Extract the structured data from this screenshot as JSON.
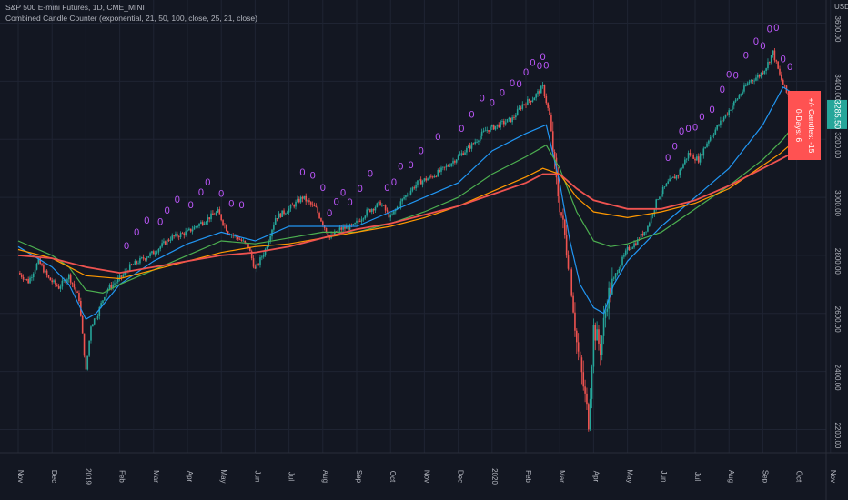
{
  "header": {
    "symbol_title": "S&P 500 E-mini Futures, 1D, CME_MINI",
    "indicator_title": "Combined Candle Counter (exponential, 21, 50, 100, close, 25, 21, close)"
  },
  "price_scale": {
    "currency": "USD"
  },
  "colors": {
    "background": "#131722",
    "grid": "#1f2433",
    "axis_text": "#b2b5be",
    "candle_up": "#26a69a",
    "candle_down": "#ef5350",
    "marker": "#c058ff",
    "ema21": "#2196f3",
    "ema50": "#4caf50",
    "ema100": "#ff9800",
    "slow_ma": "#ef5350",
    "price_label": "#26a69a",
    "info_box": "#ff5252"
  },
  "info_box": {
    "line1": "+/- Candles: -15",
    "line2": "0-Days: 6"
  },
  "price_label": "3285.50",
  "marker_symbol": "0",
  "chart_data": {
    "type": "candlestick",
    "title": "S&P 500 E-mini Futures, 1D, CME_MINI",
    "ylim": [
      2120,
      3680
    ],
    "xlim": [
      0,
      24
    ],
    "yticks": [
      2200,
      2400,
      2600,
      2800,
      3000,
      3200,
      3400,
      3600
    ],
    "ytick_labels": [
      "2200.00",
      "2400.00",
      "2600.00",
      "2800.00",
      "3000.00",
      "3200.00",
      "3400.00",
      "3600.00"
    ],
    "xtick_labels": [
      "Nov",
      "Dec",
      "2019",
      "Feb",
      "Mar",
      "Apr",
      "May",
      "Jun",
      "Jul",
      "Aug",
      "Sep",
      "Oct",
      "Nov",
      "Dec",
      "2020",
      "Feb",
      "Mar",
      "Apr",
      "May",
      "Jun",
      "Jul",
      "Aug",
      "Sep",
      "Oct",
      "Nov"
    ],
    "grid": true,
    "last_price": 3285.5,
    "close_path": [
      [
        0,
        2740
      ],
      [
        0.3,
        2710
      ],
      [
        0.6,
        2780
      ],
      [
        0.9,
        2720
      ],
      [
        1.2,
        2690
      ],
      [
        1.5,
        2730
      ],
      [
        1.8,
        2650
      ],
      [
        2.0,
        2400
      ],
      [
        2.15,
        2560
      ],
      [
        2.35,
        2600
      ],
      [
        2.6,
        2680
      ],
      [
        3.0,
        2720
      ],
      [
        3.3,
        2760
      ],
      [
        3.7,
        2790
      ],
      [
        4.0,
        2810
      ],
      [
        4.5,
        2860
      ],
      [
        5.0,
        2880
      ],
      [
        5.5,
        2920
      ],
      [
        5.9,
        2950
      ],
      [
        6.2,
        2880
      ],
      [
        6.5,
        2860
      ],
      [
        6.8,
        2830
      ],
      [
        7.0,
        2750
      ],
      [
        7.3,
        2820
      ],
      [
        7.6,
        2930
      ],
      [
        8.0,
        2960
      ],
      [
        8.4,
        3000
      ],
      [
        8.8,
        2960
      ],
      [
        9.2,
        2860
      ],
      [
        9.5,
        2890
      ],
      [
        9.9,
        2900
      ],
      [
        10.3,
        2950
      ],
      [
        10.7,
        2980
      ],
      [
        11.0,
        2930
      ],
      [
        11.4,
        3000
      ],
      [
        11.8,
        3050
      ],
      [
        12.2,
        3070
      ],
      [
        12.6,
        3100
      ],
      [
        13.0,
        3140
      ],
      [
        13.4,
        3180
      ],
      [
        13.8,
        3230
      ],
      [
        14.2,
        3250
      ],
      [
        14.6,
        3270
      ],
      [
        14.9,
        3320
      ],
      [
        15.2,
        3340
      ],
      [
        15.5,
        3380
      ],
      [
        15.7,
        3280
      ],
      [
        15.9,
        3050
      ],
      [
        16.1,
        2900
      ],
      [
        16.3,
        2750
      ],
      [
        16.5,
        2500
      ],
      [
        16.7,
        2350
      ],
      [
        16.85,
        2230
      ],
      [
        17.0,
        2550
      ],
      [
        17.2,
        2480
      ],
      [
        17.4,
        2650
      ],
      [
        17.7,
        2750
      ],
      [
        18.0,
        2820
      ],
      [
        18.3,
        2850
      ],
      [
        18.6,
        2900
      ],
      [
        18.9,
        3000
      ],
      [
        19.2,
        3050
      ],
      [
        19.5,
        3080
      ],
      [
        19.8,
        3150
      ],
      [
        20.1,
        3130
      ],
      [
        20.4,
        3200
      ],
      [
        20.7,
        3250
      ],
      [
        21.0,
        3300
      ],
      [
        21.3,
        3350
      ],
      [
        21.6,
        3400
      ],
      [
        21.9,
        3420
      ],
      [
        22.1,
        3450
      ],
      [
        22.3,
        3500
      ],
      [
        22.5,
        3420
      ],
      [
        22.7,
        3360
      ],
      [
        22.9,
        3330
      ],
      [
        23.1,
        3300
      ],
      [
        23.3,
        3260
      ]
    ],
    "series": [
      {
        "name": "21",
        "color": "#2196f3",
        "x": [
          0,
          1,
          1.5,
          2,
          2.3,
          3,
          4,
          5,
          6,
          7,
          8,
          9,
          10,
          11,
          12,
          13,
          14,
          15,
          15.6,
          16,
          16.3,
          16.6,
          17,
          17.3,
          17.6,
          18,
          19,
          20,
          21,
          22,
          22.6,
          23,
          23.3
        ],
        "values": [
          2830,
          2760,
          2700,
          2580,
          2600,
          2700,
          2780,
          2840,
          2880,
          2850,
          2900,
          2900,
          2900,
          2950,
          3000,
          3050,
          3160,
          3220,
          3250,
          3050,
          2850,
          2700,
          2620,
          2600,
          2700,
          2780,
          2900,
          3000,
          3100,
          3250,
          3380,
          3350,
          3320
        ]
      },
      {
        "name": "50",
        "color": "#4caf50",
        "x": [
          0,
          1,
          1.5,
          2,
          2.5,
          3,
          4,
          5,
          6,
          7,
          8,
          9,
          10,
          11,
          12,
          13,
          14,
          15,
          15.6,
          16,
          16.5,
          17,
          17.5,
          18,
          19,
          20,
          21,
          22,
          22.6,
          23,
          23.3
        ],
        "values": [
          2850,
          2800,
          2760,
          2680,
          2670,
          2700,
          2750,
          2800,
          2850,
          2840,
          2860,
          2880,
          2880,
          2910,
          2950,
          3000,
          3080,
          3140,
          3180,
          3100,
          2950,
          2850,
          2830,
          2840,
          2880,
          2960,
          3040,
          3130,
          3200,
          3260,
          3270
        ]
      },
      {
        "name": "100",
        "color": "#ff9800",
        "x": [
          0,
          1,
          2,
          3,
          4,
          5,
          6,
          7,
          8,
          9,
          10,
          11,
          12,
          13,
          14,
          15,
          15.5,
          16,
          16.5,
          17,
          18,
          19,
          20,
          21,
          22,
          22.5,
          23,
          23.3
        ],
        "values": [
          2820,
          2790,
          2730,
          2720,
          2750,
          2780,
          2810,
          2830,
          2840,
          2860,
          2880,
          2900,
          2930,
          2970,
          3020,
          3070,
          3100,
          3080,
          3000,
          2950,
          2930,
          2950,
          2980,
          3030,
          3110,
          3150,
          3200,
          3220
        ]
      },
      {
        "name": "slow",
        "color": "#ef5350",
        "x": [
          0,
          1,
          2,
          3,
          4,
          5,
          6,
          7,
          8,
          9,
          10,
          11,
          12,
          13,
          14,
          15,
          15.5,
          16,
          16.5,
          17,
          18,
          19,
          20,
          21,
          22,
          23,
          23.3
        ],
        "values": [
          2800,
          2790,
          2760,
          2740,
          2760,
          2780,
          2800,
          2810,
          2830,
          2860,
          2890,
          2910,
          2940,
          2970,
          3010,
          3050,
          3080,
          3080,
          3030,
          2990,
          2960,
          2960,
          2990,
          3040,
          3100,
          3160,
          3170
        ]
      }
    ],
    "markers_x": [
      3.2,
      3.5,
      3.8,
      4.2,
      4.4,
      4.7,
      5.1,
      5.4,
      5.6,
      6.0,
      6.3,
      6.6,
      8.4,
      8.7,
      9.0,
      9.2,
      9.4,
      9.6,
      9.8,
      10.1,
      10.4,
      10.9,
      11.1,
      11.3,
      11.6,
      11.9,
      12.4,
      13.1,
      13.4,
      13.7,
      14.0,
      14.3,
      14.6,
      14.8,
      15.0,
      15.2,
      15.4,
      15.5,
      15.6,
      19.2,
      19.4,
      19.6,
      19.8,
      20.0,
      20.2,
      20.5,
      20.8,
      21.0,
      21.2,
      21.5,
      21.8,
      22.0,
      22.2,
      22.4,
      22.6,
      22.8
    ]
  }
}
